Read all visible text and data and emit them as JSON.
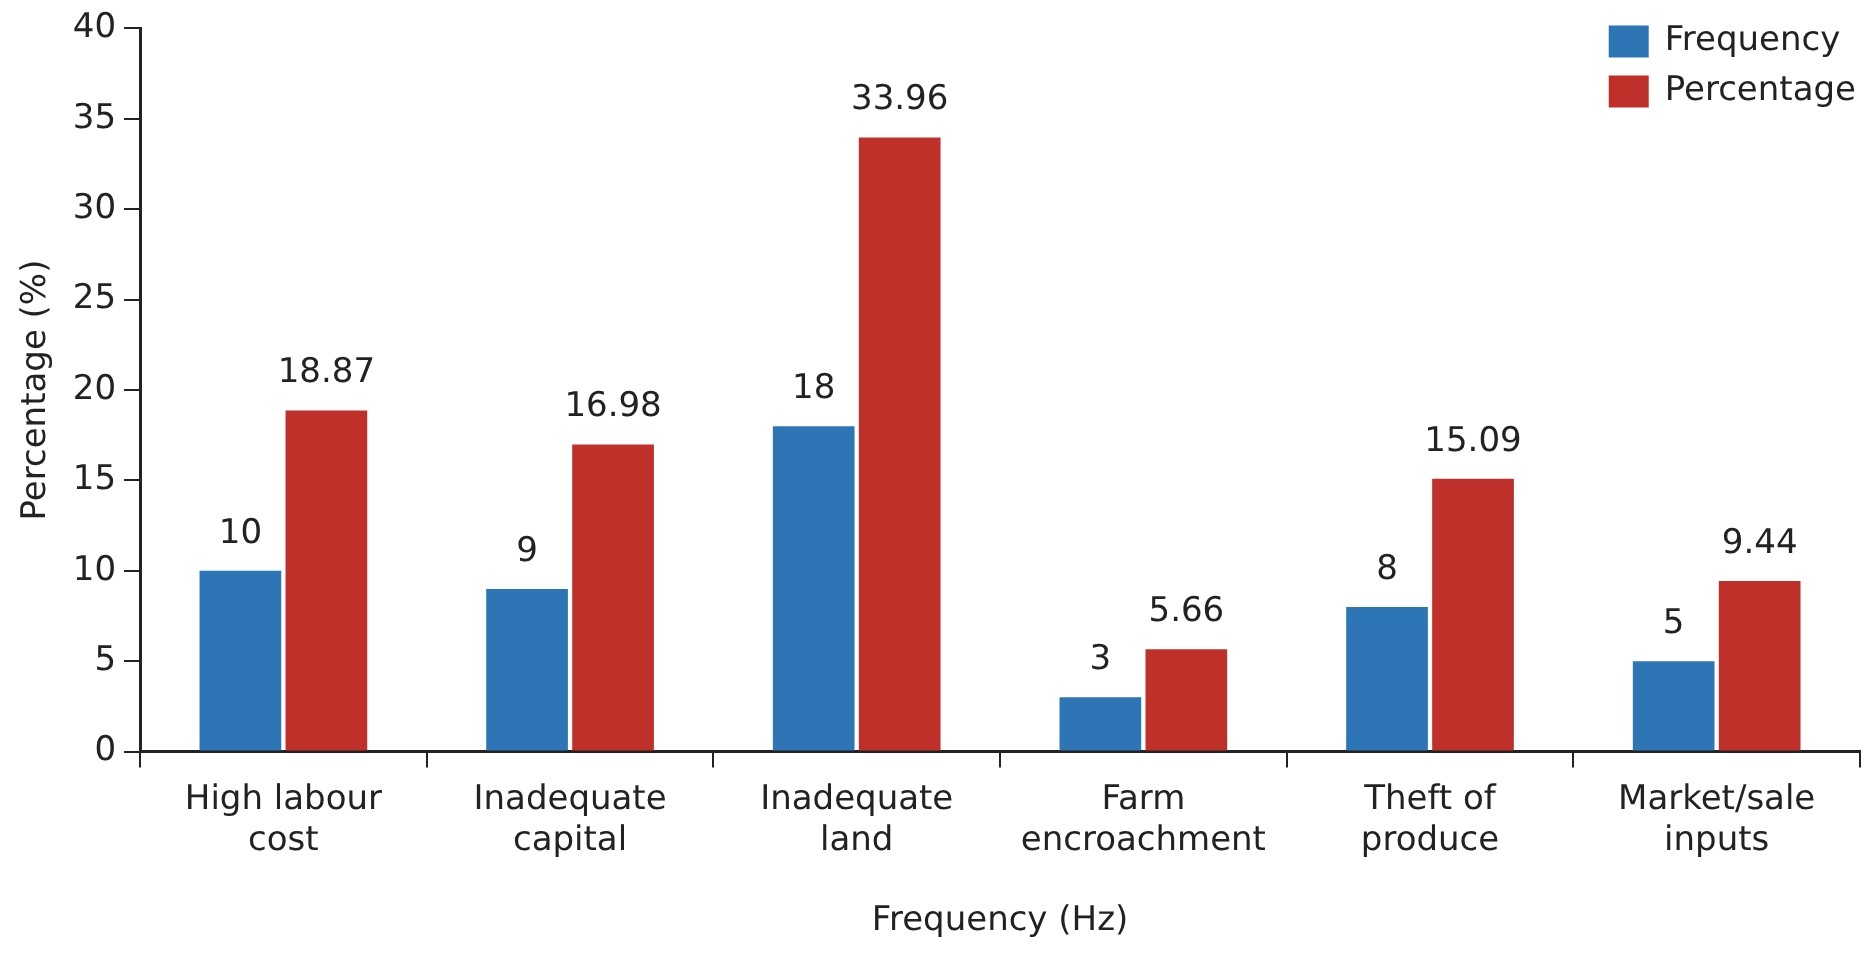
{
  "chart_data": {
    "type": "bar",
    "xlabel": "Frequency (Hz)",
    "ylabel": "Percentage (%)",
    "categories": [
      "High labour cost",
      "Inadequate capital",
      "Inadequate land",
      "Farm encroachment",
      "Theft of produce",
      "Market/sale inputs"
    ],
    "series": [
      {
        "name": "Frequency",
        "color": "#2e75b6",
        "values": [
          10,
          9,
          18,
          3,
          8,
          5
        ]
      },
      {
        "name": "Percentage",
        "color": "#c0302b",
        "values": [
          18.87,
          16.98,
          33.96,
          5.66,
          15.09,
          9.44
        ]
      }
    ],
    "ylim": [
      0,
      40
    ],
    "yticks": [
      0,
      5,
      10,
      15,
      20,
      25,
      30,
      35,
      40
    ],
    "grid": false,
    "legend": "top right",
    "data_labels": true
  }
}
